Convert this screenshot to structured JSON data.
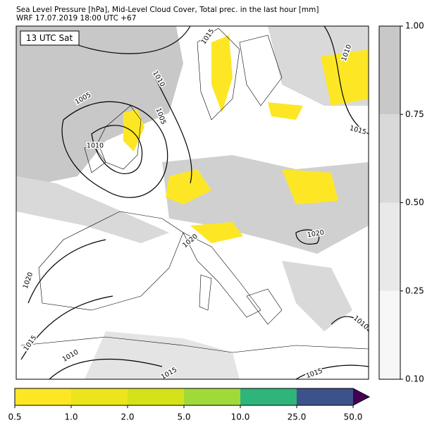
{
  "header": {
    "title": [
      "Sea Level Pressure [hPa], Mid-Level Cloud Cover, Total prec. in the last hour [mm]",
      "WRF 17.07.2019 18:00 UTC +67"
    ]
  },
  "map": {
    "time_label": "13 UTC Sat",
    "isobar_labels": [
      "1015",
      "1010",
      "1005",
      "1010",
      "1005",
      "1010",
      "1015",
      "1020",
      "1020",
      "1020",
      "1015",
      "1010",
      "1010",
      "1015",
      "1015"
    ]
  },
  "cloud_colorbar": {
    "ticks": [
      {
        "value": 0.1,
        "label": "0.10"
      },
      {
        "value": 0.25,
        "label": "0.25"
      },
      {
        "value": 0.5,
        "label": "0.50"
      },
      {
        "value": 0.75,
        "label": "0.75"
      },
      {
        "value": 1,
        "label": "1.00"
      }
    ],
    "colors": [
      "#f7f7f7",
      "#e9e9e9",
      "#d9d9d9",
      "#c8c8c8"
    ]
  },
  "precip_colorbar": {
    "ticks": [
      0.5,
      {
        "value": 1,
        "label": "1.0"
      },
      {
        "value": 2,
        "label": "2.0"
      },
      {
        "value": 5,
        "label": "5.0"
      },
      {
        "value": 10,
        "label": "10.0"
      },
      {
        "value": 25,
        "label": "25.0"
      },
      {
        "value": 50,
        "label": "50.0"
      }
    ],
    "colors": [
      "#fde725",
      "#ede51b",
      "#d5e21a",
      "#a0da39",
      "#2fb47c",
      "#3b528b"
    ],
    "extend_color": "#440154"
  }
}
